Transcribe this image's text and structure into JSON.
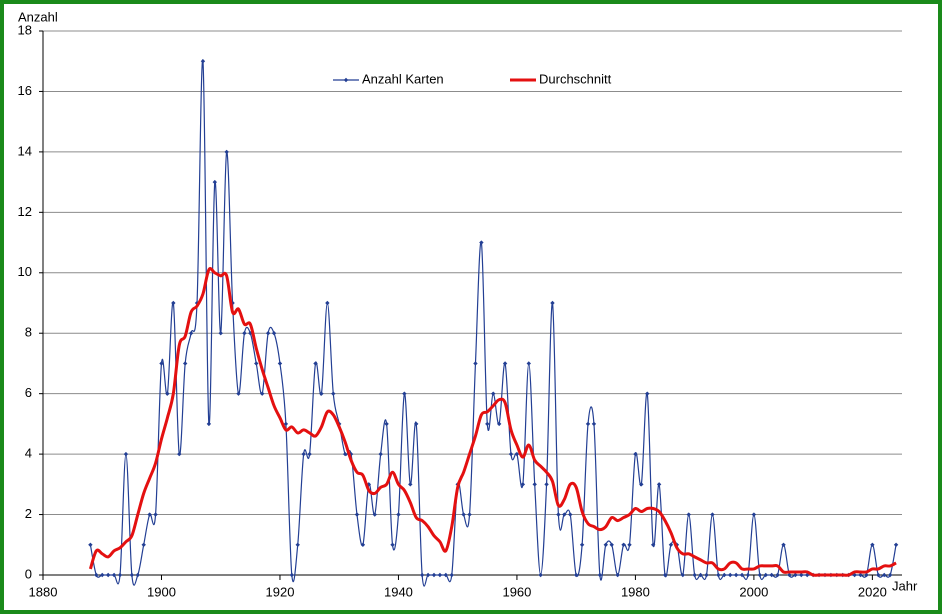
{
  "chart_data": {
    "type": "line",
    "y_label": "Anzahl",
    "x_label": "Jahr",
    "xlim": [
      1880,
      2025
    ],
    "xticks": [
      1880,
      1900,
      1920,
      1940,
      1960,
      1980,
      2000,
      2020
    ],
    "ylim": [
      0,
      18
    ],
    "yticks": [
      0,
      2,
      4,
      6,
      8,
      10,
      12,
      14,
      16,
      18
    ],
    "grid": true,
    "legend": "top",
    "x": [
      1888,
      1889,
      1890,
      1891,
      1892,
      1893,
      1894,
      1895,
      1896,
      1897,
      1898,
      1899,
      1900,
      1901,
      1902,
      1903,
      1904,
      1905,
      1906,
      1907,
      1908,
      1909,
      1910,
      1911,
      1912,
      1913,
      1914,
      1915,
      1916,
      1917,
      1918,
      1919,
      1920,
      1921,
      1922,
      1923,
      1924,
      1925,
      1926,
      1927,
      1928,
      1929,
      1930,
      1931,
      1932,
      1933,
      1934,
      1935,
      1936,
      1937,
      1938,
      1939,
      1940,
      1941,
      1942,
      1943,
      1944,
      1945,
      1946,
      1947,
      1948,
      1949,
      1950,
      1951,
      1952,
      1953,
      1954,
      1955,
      1956,
      1957,
      1958,
      1959,
      1960,
      1961,
      1962,
      1963,
      1964,
      1965,
      1966,
      1967,
      1968,
      1969,
      1970,
      1971,
      1972,
      1973,
      1974,
      1975,
      1976,
      1977,
      1978,
      1979,
      1980,
      1981,
      1982,
      1983,
      1984,
      1985,
      1986,
      1987,
      1988,
      1989,
      1990,
      1991,
      1992,
      1993,
      1994,
      1995,
      1996,
      1997,
      1998,
      1999,
      2000,
      2001,
      2002,
      2003,
      2004,
      2005,
      2006,
      2007,
      2008,
      2009,
      2010,
      2011,
      2012,
      2013,
      2014,
      2015,
      2016,
      2017,
      2018,
      2019,
      2020,
      2021,
      2022,
      2023,
      2024
    ],
    "series": [
      {
        "name": "Anzahl Karten",
        "color": "#233f94",
        "markers": true,
        "smooth": true,
        "values": [
          1,
          0,
          0,
          0,
          0,
          0,
          4,
          0,
          0,
          1,
          2,
          2,
          7,
          6,
          9,
          4,
          7,
          8,
          9,
          17,
          5,
          13,
          8,
          14,
          9,
          6,
          8,
          8,
          7,
          6,
          8,
          8,
          7,
          5,
          0,
          1,
          4,
          4,
          7,
          6,
          9,
          6,
          5,
          4,
          4,
          2,
          1,
          3,
          2,
          4,
          5,
          1,
          2,
          6,
          3,
          5,
          0,
          0,
          0,
          0,
          0,
          0,
          3,
          2,
          2,
          7,
          11,
          5,
          6,
          5,
          7,
          4,
          4,
          3,
          7,
          3,
          0,
          3,
          9,
          2,
          2,
          2,
          0,
          1,
          5,
          5,
          0,
          1,
          1,
          0,
          1,
          1,
          4,
          3,
          6,
          1,
          3,
          0,
          1,
          1,
          0,
          2,
          0,
          0,
          0,
          2,
          0,
          0,
          0,
          0,
          0,
          0,
          2,
          0,
          0,
          0,
          0,
          1,
          0,
          0,
          0,
          0,
          0,
          0,
          0,
          0,
          0,
          0,
          0,
          0,
          0,
          0,
          1,
          0,
          0,
          0,
          1
        ]
      },
      {
        "name": "Durchschnitt",
        "color": "#e41010",
        "markers": false,
        "smooth": true,
        "values": [
          0.2,
          0.8,
          0.7,
          0.6,
          0.8,
          0.9,
          1.1,
          1.3,
          2.0,
          2.7,
          3.2,
          3.7,
          4.5,
          5.2,
          6.0,
          7.6,
          7.9,
          8.7,
          8.9,
          9.3,
          10.1,
          10.0,
          9.9,
          9.9,
          8.7,
          8.8,
          8.3,
          8.3,
          7.5,
          6.8,
          6.2,
          5.6,
          5.2,
          4.8,
          4.9,
          4.7,
          4.8,
          4.7,
          4.6,
          4.9,
          5.4,
          5.3,
          4.9,
          4.4,
          3.8,
          3.4,
          3.3,
          2.8,
          2.7,
          2.9,
          3.0,
          3.4,
          3.0,
          2.8,
          2.4,
          1.9,
          1.8,
          1.6,
          1.3,
          1.1,
          0.8,
          1.6,
          2.9,
          3.4,
          4.0,
          4.6,
          5.3,
          5.4,
          5.6,
          5.8,
          5.7,
          4.8,
          4.3,
          3.9,
          4.3,
          3.8,
          3.6,
          3.4,
          3.1,
          2.3,
          2.5,
          3.0,
          2.9,
          2.1,
          1.7,
          1.6,
          1.5,
          1.6,
          1.9,
          1.8,
          1.9,
          2.0,
          2.2,
          2.1,
          2.2,
          2.2,
          2.1,
          1.8,
          1.4,
          0.9,
          0.7,
          0.7,
          0.6,
          0.5,
          0.4,
          0.4,
          0.2,
          0.2,
          0.4,
          0.4,
          0.2,
          0.2,
          0.2,
          0.3,
          0.3,
          0.3,
          0.3,
          0.1,
          0.1,
          0.1,
          0.1,
          0.1,
          0,
          0,
          0,
          0,
          0,
          0,
          0,
          0.1,
          0.1,
          0.1,
          0.2,
          0.2,
          0.3,
          0.3,
          0.4
        ]
      }
    ]
  }
}
